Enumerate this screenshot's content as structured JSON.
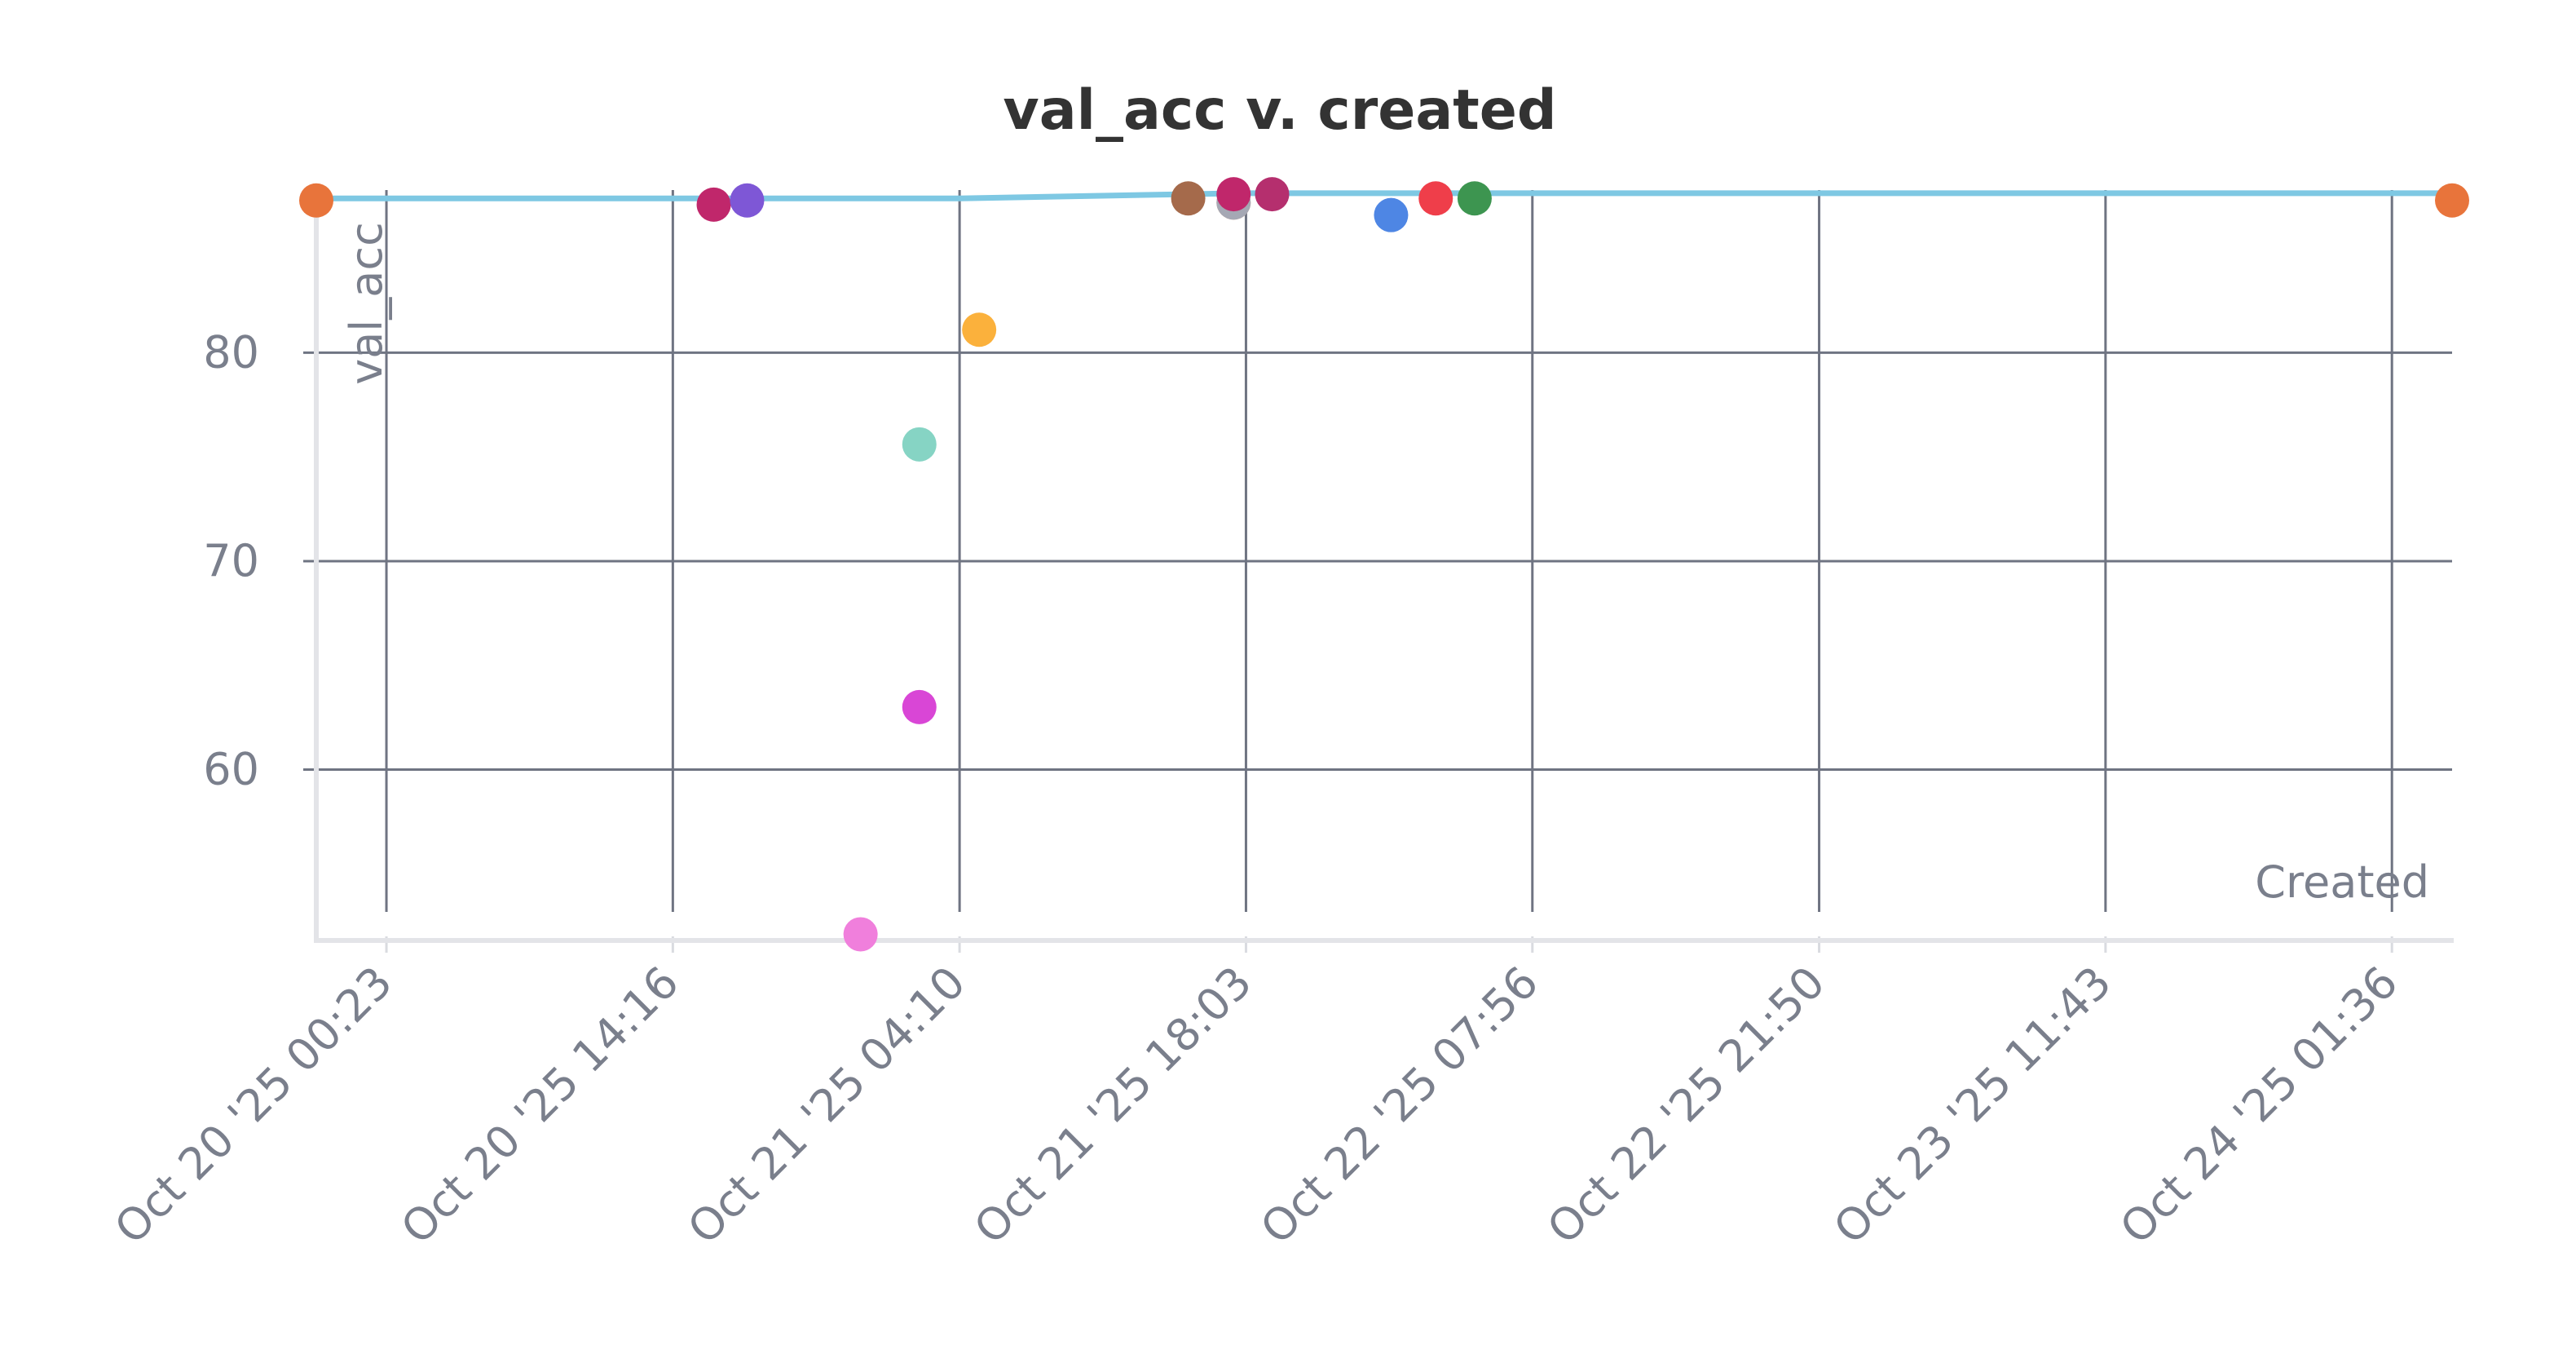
{
  "chart_data": {
    "type": "scatter",
    "title": "val_acc v. created",
    "xlabel": "Created",
    "ylabel": "val_acc",
    "x_scale": "time",
    "xlim": [
      "2025-10-19T20:59",
      "2025-10-24T04:31"
    ],
    "ylim": [
      52.0,
      87.8
    ],
    "grid": true,
    "legend": "none",
    "x_ticks": [
      {
        "value": "2025-10-20T00:23",
        "label": "Oct 20 '25 00:23"
      },
      {
        "value": "2025-10-20T14:16",
        "label": "Oct 20 '25 14:16"
      },
      {
        "value": "2025-10-21T04:10",
        "label": "Oct 21 '25 04:10"
      },
      {
        "value": "2025-10-21T18:03",
        "label": "Oct 21 '25 18:03"
      },
      {
        "value": "2025-10-22T07:56",
        "label": "Oct 22 '25 07:56"
      },
      {
        "value": "2025-10-22T21:50",
        "label": "Oct 22 '25 21:50"
      },
      {
        "value": "2025-10-23T11:43",
        "label": "Oct 23 '25 11:43"
      },
      {
        "value": "2025-10-24T01:36",
        "label": "Oct 24 '25 01:36"
      }
    ],
    "y_ticks": [
      {
        "value": 60,
        "label": "60"
      },
      {
        "value": 70,
        "label": "70"
      },
      {
        "value": 80,
        "label": "80"
      }
    ],
    "best_line": {
      "color": "#7ec8e3",
      "points": [
        {
          "x": "2025-10-19T20:59",
          "y": 87.4
        },
        {
          "x": "2025-10-21T04:10",
          "y": 87.4
        },
        {
          "x": "2025-10-21T17:52",
          "y": 87.65
        },
        {
          "x": "2025-10-24T04:31",
          "y": 87.65
        }
      ]
    },
    "points": [
      {
        "x": "2025-10-19T20:59",
        "y": 87.3,
        "color": "#e8743b"
      },
      {
        "x": "2025-10-20T16:15",
        "y": 87.1,
        "color": "#c0276b"
      },
      {
        "x": "2025-10-20T17:52",
        "y": 87.3,
        "color": "#7e57d6"
      },
      {
        "x": "2025-10-20T23:22",
        "y": 52.1,
        "color": "#f07fdc"
      },
      {
        "x": "2025-10-21T02:13",
        "y": 75.6,
        "color": "#86d4c4"
      },
      {
        "x": "2025-10-21T02:13",
        "y": 63.0,
        "color": "#d946d6"
      },
      {
        "x": "2025-10-21T05:07",
        "y": 81.1,
        "color": "#fbb13c"
      },
      {
        "x": "2025-10-21T15:15",
        "y": 87.4,
        "color": "#a56a4b"
      },
      {
        "x": "2025-10-21T17:27",
        "y": 87.2,
        "color": "#f2a07b"
      },
      {
        "x": "2025-10-21T17:27",
        "y": 87.2,
        "color": "#a5a8b4"
      },
      {
        "x": "2025-10-21T17:27",
        "y": 87.6,
        "color": "#c0276b"
      },
      {
        "x": "2025-10-21T19:19",
        "y": 87.6,
        "color": "#b52f6e"
      },
      {
        "x": "2025-10-22T01:05",
        "y": 86.6,
        "color": "#4e86e4"
      },
      {
        "x": "2025-10-22T03:15",
        "y": 87.4,
        "color": "#ef3e4a"
      },
      {
        "x": "2025-10-22T05:08",
        "y": 87.4,
        "color": "#3d9550"
      },
      {
        "x": "2025-10-24T04:31",
        "y": 87.3,
        "color": "#e8743b"
      }
    ]
  }
}
